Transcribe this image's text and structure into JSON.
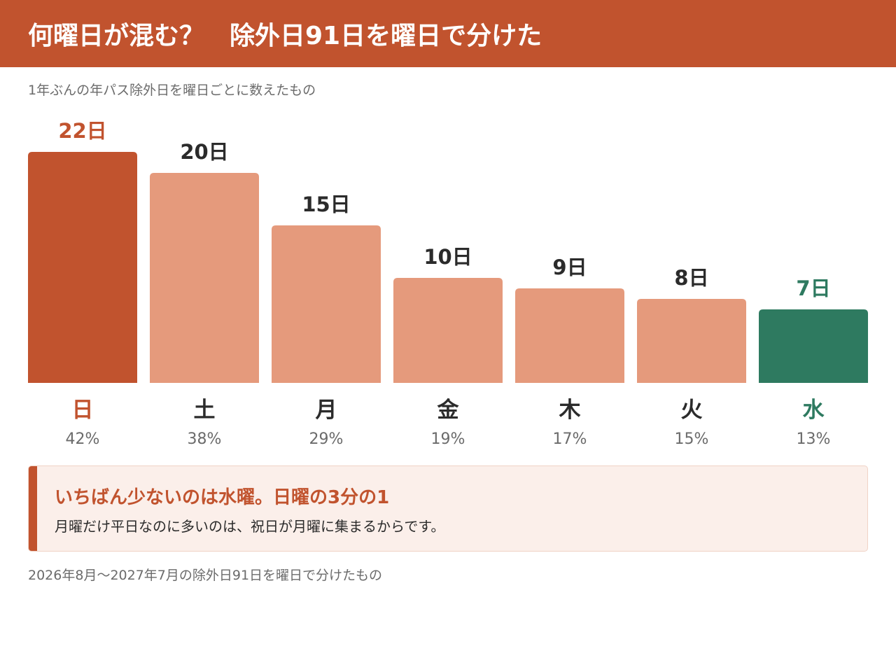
{
  "header": {
    "title": "何曜日が混む？　除外日91日を曜日で分けた"
  },
  "subtitle": "1年ぶんの年パス除外日を曜日ごとに数えたもの",
  "colors": {
    "header_bg": "#c1532e",
    "highlight_max": "#c1532e",
    "highlight_min": "#2e7a60",
    "bar_default": "#e59a7c",
    "text_dark": "#2b2b2b",
    "text_muted": "#6b6b6b"
  },
  "chart_data": {
    "type": "bar",
    "categories": [
      "日",
      "土",
      "月",
      "金",
      "木",
      "火",
      "水"
    ],
    "values": [
      22,
      20,
      15,
      10,
      9,
      8,
      7
    ],
    "value_labels": [
      "22日",
      "20日",
      "15日",
      "10日",
      "9日",
      "8日",
      "7日"
    ],
    "percent_labels": [
      "42%",
      "38%",
      "29%",
      "19%",
      "17%",
      "15%",
      "13%"
    ],
    "highlight": {
      "max_index": 0,
      "min_index": 6
    },
    "ylim": [
      0,
      22
    ],
    "grid": false,
    "legend": "none"
  },
  "callout": {
    "headline": "いちばん少ないのは水曜。日曜の3分の1",
    "body": "月曜だけ平日なのに多いのは、祝日が月曜に集まるからです。"
  },
  "footnote": "2026年8月〜2027年7月の除外日91日を曜日で分けたもの"
}
